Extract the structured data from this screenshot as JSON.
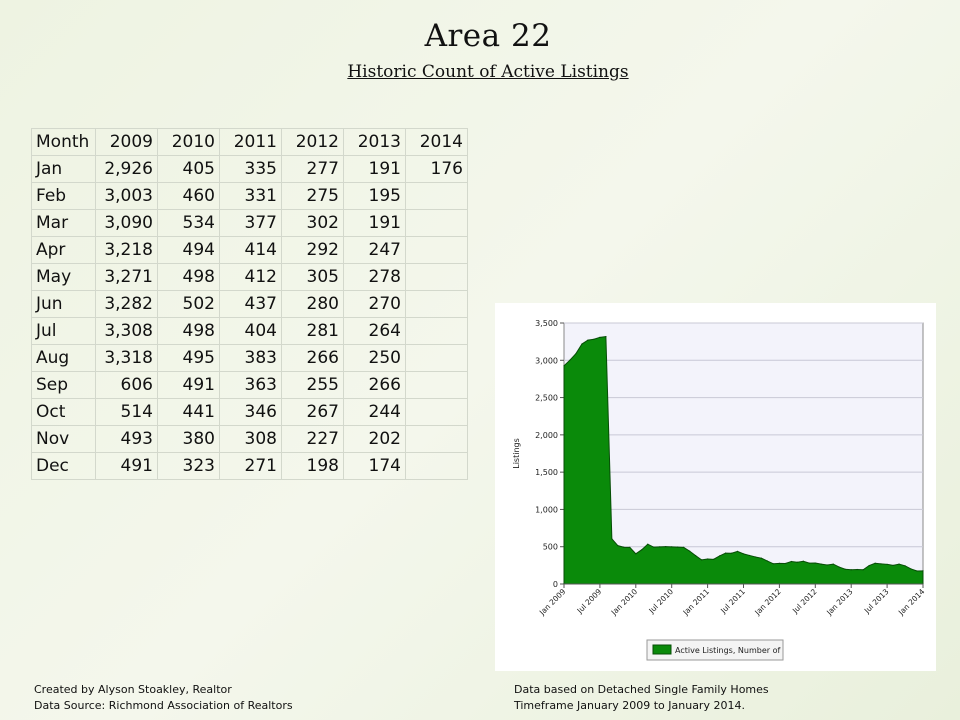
{
  "header": {
    "title": "Area 22",
    "subtitle": "Historic Count of Active Listings"
  },
  "table": {
    "columns": [
      "Month",
      "2009",
      "2010",
      "2011",
      "2012",
      "2013",
      "2014"
    ],
    "rows": [
      [
        "Jan",
        "2,926",
        "405",
        "335",
        "277",
        "191",
        "176"
      ],
      [
        "Feb",
        "3,003",
        "460",
        "331",
        "275",
        "195",
        ""
      ],
      [
        "Mar",
        "3,090",
        "534",
        "377",
        "302",
        "191",
        ""
      ],
      [
        "Apr",
        "3,218",
        "494",
        "414",
        "292",
        "247",
        ""
      ],
      [
        "May",
        "3,271",
        "498",
        "412",
        "305",
        "278",
        ""
      ],
      [
        "Jun",
        "3,282",
        "502",
        "437",
        "280",
        "270",
        ""
      ],
      [
        "Jul",
        "3,308",
        "498",
        "404",
        "281",
        "264",
        ""
      ],
      [
        "Aug",
        "3,318",
        "495",
        "383",
        "266",
        "250",
        ""
      ],
      [
        "Sep",
        "606",
        "491",
        "363",
        "255",
        "266",
        ""
      ],
      [
        "Oct",
        "514",
        "441",
        "346",
        "267",
        "244",
        ""
      ],
      [
        "Nov",
        "493",
        "380",
        "308",
        "227",
        "202",
        ""
      ],
      [
        "Dec",
        "491",
        "323",
        "271",
        "198",
        "174",
        ""
      ]
    ]
  },
  "chart_data": {
    "type": "area",
    "title": "",
    "xlabel": "",
    "ylabel": "Listings",
    "ylim": [
      0,
      3500
    ],
    "yticks": [
      0,
      500,
      1000,
      1500,
      2000,
      2500,
      3000,
      3500
    ],
    "ytick_labels": [
      "0",
      "500",
      "1,000",
      "1,500",
      "2,000",
      "2,500",
      "3,000",
      "3,500"
    ],
    "xtick_labels": [
      "Jan 2009",
      "Jul 2009",
      "Jan 2010",
      "Jul 2010",
      "Jan 2011",
      "Jul 2011",
      "Jan 2012",
      "Jul 2012",
      "Jan 2013",
      "Jul 2013",
      "Jan 2014"
    ],
    "grid": true,
    "legend_position": "bottom",
    "series": [
      {
        "name": "Active Listings, Number of",
        "color": "#0a8a0a",
        "values": [
          2926,
          3003,
          3090,
          3218,
          3271,
          3282,
          3308,
          3318,
          606,
          514,
          493,
          491,
          405,
          460,
          534,
          494,
          498,
          502,
          498,
          495,
          491,
          441,
          380,
          323,
          335,
          331,
          377,
          414,
          412,
          437,
          404,
          383,
          363,
          346,
          308,
          271,
          277,
          275,
          302,
          292,
          305,
          280,
          281,
          266,
          255,
          267,
          227,
          198,
          191,
          195,
          191,
          247,
          278,
          270,
          264,
          250,
          266,
          244,
          202,
          174,
          176
        ]
      }
    ]
  },
  "footer": {
    "left_line1": "Created by Alyson Stoakley, Realtor",
    "left_line2": "Data Source: Richmond Association of Realtors",
    "right_line1": "Data based on Detached Single Family Homes",
    "right_line2": "Timeframe January 2009 to January 2014."
  }
}
